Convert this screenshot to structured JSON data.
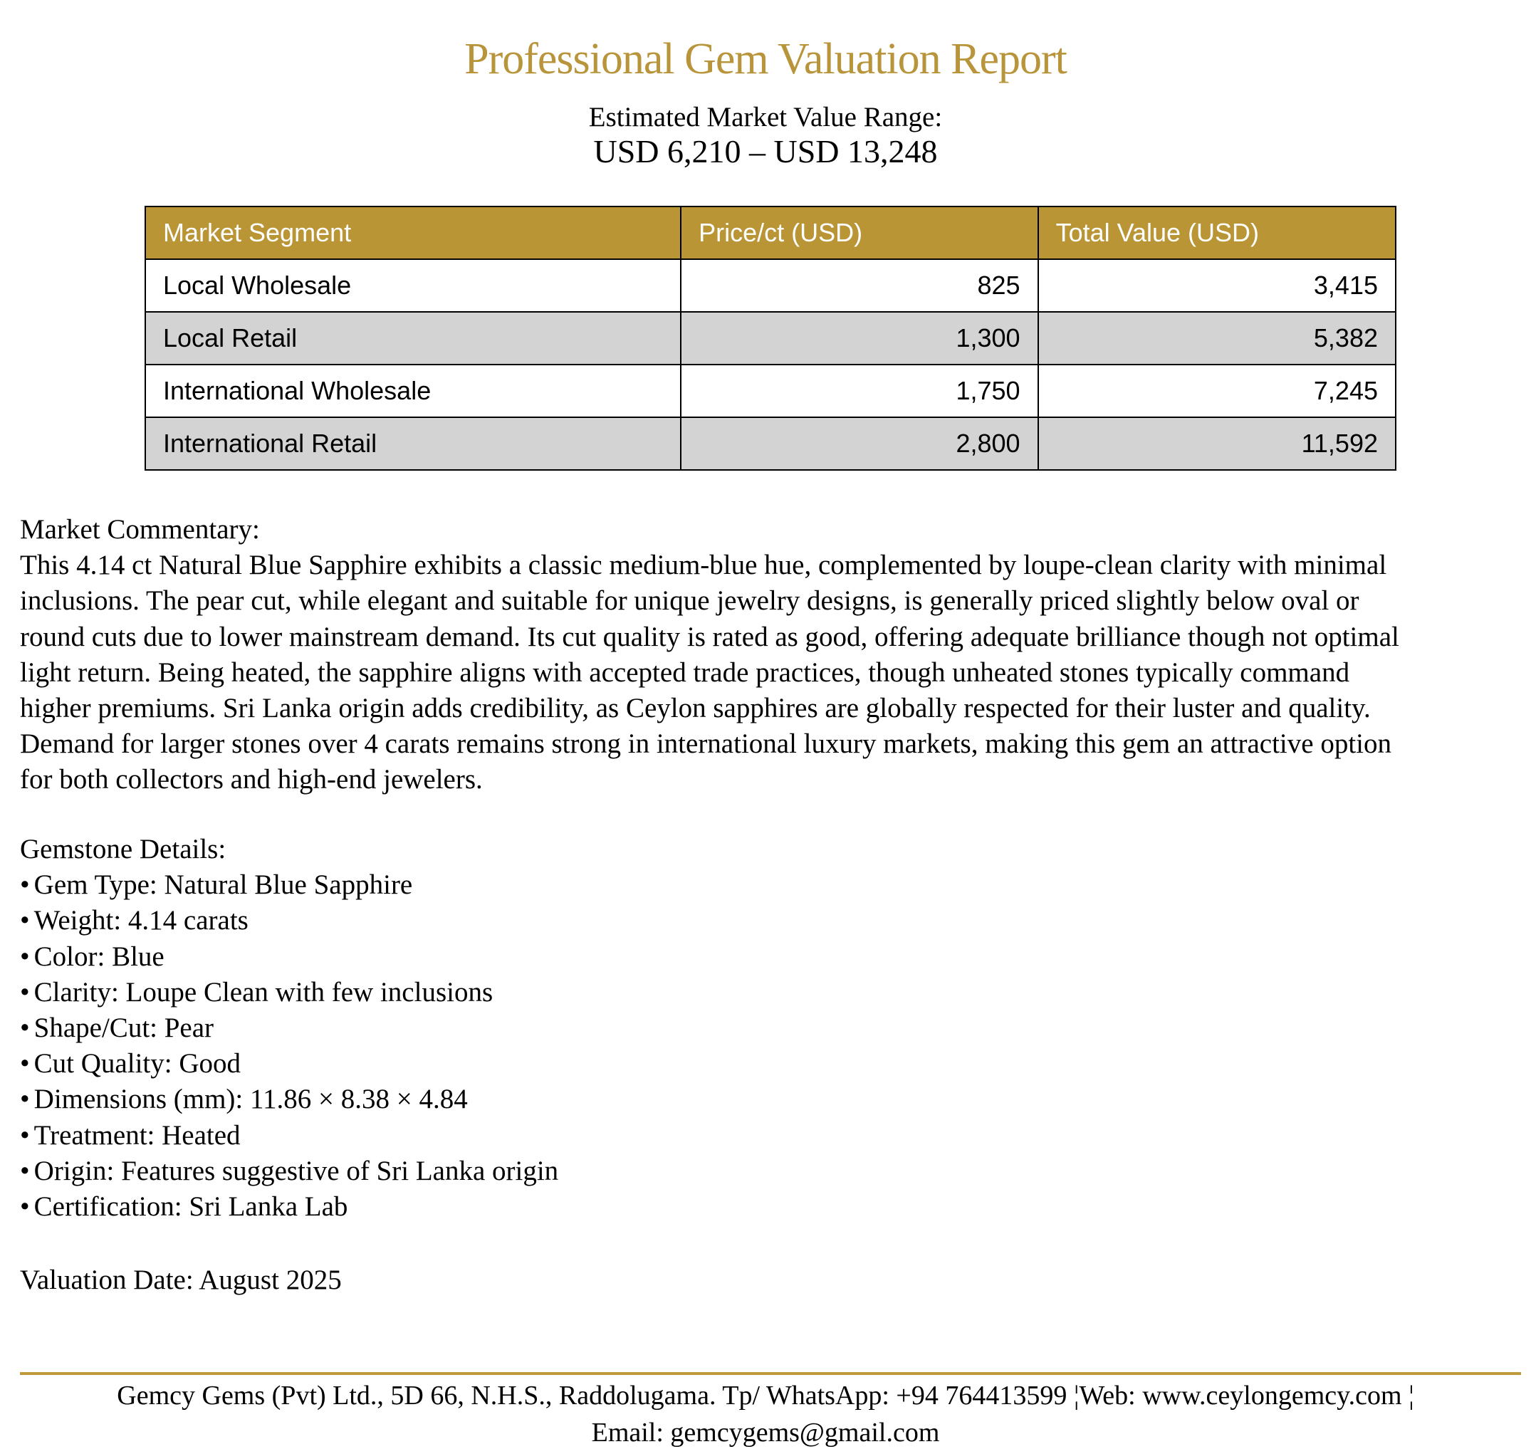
{
  "title": "Professional Gem Valuation Report",
  "value_range": {
    "label": "Estimated Market Value Range:",
    "value": "USD 6,210 – USD 13,248"
  },
  "table": {
    "headers": [
      "Market Segment",
      "Price/ct (USD)",
      "Total Value (USD)"
    ],
    "rows": [
      [
        "Local Wholesale",
        "825",
        "3,415"
      ],
      [
        "Local Retail",
        "1,300",
        "5,382"
      ],
      [
        "International Wholesale",
        "1,750",
        "7,245"
      ],
      [
        "International Retail",
        "2,800",
        "11,592"
      ]
    ]
  },
  "commentary": {
    "heading": "Market Commentary:",
    "lines": [
      "This 4.14 ct Natural Blue Sapphire exhibits a classic medium-blue hue, complemented by loupe-clean clarity with minimal",
      "inclusions. The pear cut, while elegant and suitable for unique jewelry designs, is generally priced slightly below oval or",
      "round cuts due to lower mainstream demand. Its cut quality is rated as good, offering adequate brilliance though not optimal",
      "light return. Being heated, the sapphire aligns with accepted trade practices, though unheated stones typically command",
      "higher premiums. Sri Lanka origin adds credibility, as Ceylon sapphires are globally respected for their luster and quality.",
      "Demand for larger stones over 4 carats remains strong in international luxury markets, making this gem an attractive option",
      "for both collectors and high-end jewelers."
    ]
  },
  "details": {
    "heading": "Gemstone Details:",
    "bullet": "•",
    "items": [
      "Gem Type: Natural Blue Sapphire",
      "Weight: 4.14 carats",
      "Color: Blue",
      "Clarity: Loupe Clean with few inclusions",
      "Shape/Cut: Pear",
      "Cut Quality: Good",
      "Dimensions (mm): 11.86 × 8.38 × 4.84",
      "Treatment: Heated",
      "Origin: Features suggestive of Sri Lanka origin",
      "Certification: Sri Lanka Lab"
    ]
  },
  "valuation_date": "Valuation Date: August 2025",
  "footer": {
    "line1": "Gemcy Gems (Pvt) Ltd., 5D 66, N.H.S., Raddolugama. Tp/ WhatsApp: +94 764413599 ¦Web: www.ceylongemcy.com ¦",
    "line2": "Email: gemcygems@gmail.com"
  },
  "colors": {
    "accent": "#BA9535",
    "row_alt": "#D3D3D3"
  }
}
